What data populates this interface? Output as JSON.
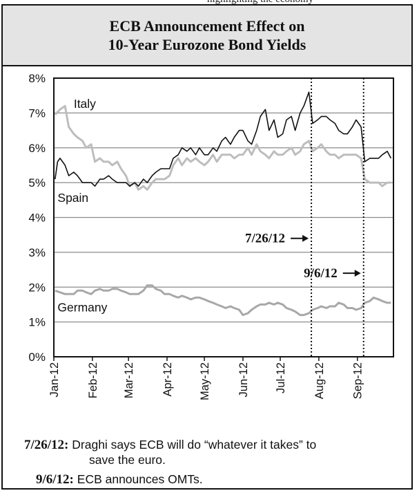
{
  "header_fragment": "highlighting the economy",
  "chart_data": {
    "type": "line",
    "title": "ECB Announcement Effect on",
    "subtitle": "10-Year Eurozone Bond Yields",
    "xlabel": "",
    "ylabel": "",
    "ylim": [
      0,
      8
    ],
    "y_ticks": [
      "0%",
      "1%",
      "2%",
      "3%",
      "4%",
      "5%",
      "6%",
      "7%",
      "8%"
    ],
    "x_ticks": [
      "Jan-12",
      "Feb-12",
      "Mar-12",
      "Apr-12",
      "May-12",
      "Jun-12",
      "Jul-12",
      "Aug-12",
      "Sep-12"
    ],
    "xlim": [
      "2012-01-01",
      "2012-09-30"
    ],
    "grid": "horizontal",
    "legend": "none",
    "series": [
      {
        "name": "Italy",
        "color": "#bdbdbd",
        "points": [
          [
            "2012-01-02",
            6.95
          ],
          [
            "2012-01-06",
            7.1
          ],
          [
            "2012-01-10",
            7.2
          ],
          [
            "2012-01-13",
            6.6
          ],
          [
            "2012-01-17",
            6.4
          ],
          [
            "2012-01-20",
            6.3
          ],
          [
            "2012-01-24",
            6.2
          ],
          [
            "2012-01-27",
            6.0
          ],
          [
            "2012-01-31",
            6.1
          ],
          [
            "2012-02-03",
            5.6
          ],
          [
            "2012-02-07",
            5.7
          ],
          [
            "2012-02-10",
            5.6
          ],
          [
            "2012-02-14",
            5.6
          ],
          [
            "2012-02-17",
            5.5
          ],
          [
            "2012-02-21",
            5.6
          ],
          [
            "2012-02-24",
            5.4
          ],
          [
            "2012-02-28",
            5.2
          ],
          [
            "2012-03-02",
            4.9
          ],
          [
            "2012-03-06",
            5.0
          ],
          [
            "2012-03-09",
            4.8
          ],
          [
            "2012-03-13",
            4.9
          ],
          [
            "2012-03-16",
            4.8
          ],
          [
            "2012-03-20",
            5.0
          ],
          [
            "2012-03-23",
            5.1
          ],
          [
            "2012-03-27",
            5.1
          ],
          [
            "2012-03-30",
            5.1
          ],
          [
            "2012-04-03",
            5.2
          ],
          [
            "2012-04-06",
            5.5
          ],
          [
            "2012-04-10",
            5.7
          ],
          [
            "2012-04-13",
            5.5
          ],
          [
            "2012-04-17",
            5.7
          ],
          [
            "2012-04-20",
            5.6
          ],
          [
            "2012-04-24",
            5.7
          ],
          [
            "2012-04-27",
            5.6
          ],
          [
            "2012-05-01",
            5.5
          ],
          [
            "2012-05-04",
            5.6
          ],
          [
            "2012-05-08",
            5.8
          ],
          [
            "2012-05-11",
            5.6
          ],
          [
            "2012-05-15",
            5.8
          ],
          [
            "2012-05-18",
            5.8
          ],
          [
            "2012-05-22",
            5.8
          ],
          [
            "2012-05-25",
            5.7
          ],
          [
            "2012-05-29",
            5.8
          ],
          [
            "2012-06-01",
            5.8
          ],
          [
            "2012-06-05",
            6.0
          ],
          [
            "2012-06-08",
            5.8
          ],
          [
            "2012-06-12",
            6.1
          ],
          [
            "2012-06-15",
            5.9
          ],
          [
            "2012-06-19",
            5.8
          ],
          [
            "2012-06-22",
            5.7
          ],
          [
            "2012-06-26",
            5.9
          ],
          [
            "2012-06-29",
            5.8
          ],
          [
            "2012-07-03",
            5.8
          ],
          [
            "2012-07-06",
            5.9
          ],
          [
            "2012-07-10",
            6.0
          ],
          [
            "2012-07-13",
            5.8
          ],
          [
            "2012-07-17",
            5.9
          ],
          [
            "2012-07-20",
            6.1
          ],
          [
            "2012-07-24",
            6.2
          ],
          [
            "2012-07-27",
            5.9
          ],
          [
            "2012-07-31",
            6.0
          ],
          [
            "2012-08-03",
            6.1
          ],
          [
            "2012-08-07",
            5.9
          ],
          [
            "2012-08-10",
            5.8
          ],
          [
            "2012-08-14",
            5.8
          ],
          [
            "2012-08-17",
            5.7
          ],
          [
            "2012-08-21",
            5.8
          ],
          [
            "2012-08-24",
            5.8
          ],
          [
            "2012-08-28",
            5.8
          ],
          [
            "2012-08-31",
            5.8
          ],
          [
            "2012-09-04",
            5.7
          ],
          [
            "2012-09-07",
            5.1
          ],
          [
            "2012-09-11",
            5.0
          ],
          [
            "2012-09-14",
            5.0
          ],
          [
            "2012-09-18",
            5.0
          ],
          [
            "2012-09-21",
            4.9
          ],
          [
            "2012-09-25",
            5.0
          ],
          [
            "2012-09-28",
            5.0
          ]
        ]
      },
      {
        "name": "Spain",
        "color": "#111111",
        "points": [
          [
            "2012-01-02",
            5.1
          ],
          [
            "2012-01-04",
            5.6
          ],
          [
            "2012-01-06",
            5.7
          ],
          [
            "2012-01-10",
            5.5
          ],
          [
            "2012-01-13",
            5.2
          ],
          [
            "2012-01-17",
            5.3
          ],
          [
            "2012-01-20",
            5.2
          ],
          [
            "2012-01-24",
            5.0
          ],
          [
            "2012-01-27",
            5.0
          ],
          [
            "2012-01-31",
            5.0
          ],
          [
            "2012-02-03",
            4.9
          ],
          [
            "2012-02-07",
            5.1
          ],
          [
            "2012-02-10",
            5.1
          ],
          [
            "2012-02-14",
            5.2
          ],
          [
            "2012-02-17",
            5.1
          ],
          [
            "2012-02-21",
            5.0
          ],
          [
            "2012-02-24",
            5.0
          ],
          [
            "2012-02-28",
            5.0
          ],
          [
            "2012-03-02",
            4.9
          ],
          [
            "2012-03-06",
            5.0
          ],
          [
            "2012-03-09",
            4.9
          ],
          [
            "2012-03-13",
            5.1
          ],
          [
            "2012-03-16",
            5.0
          ],
          [
            "2012-03-20",
            5.2
          ],
          [
            "2012-03-23",
            5.3
          ],
          [
            "2012-03-27",
            5.4
          ],
          [
            "2012-03-30",
            5.4
          ],
          [
            "2012-04-03",
            5.4
          ],
          [
            "2012-04-06",
            5.7
          ],
          [
            "2012-04-10",
            5.8
          ],
          [
            "2012-04-13",
            6.0
          ],
          [
            "2012-04-17",
            5.9
          ],
          [
            "2012-04-20",
            6.0
          ],
          [
            "2012-04-24",
            5.8
          ],
          [
            "2012-04-27",
            6.0
          ],
          [
            "2012-05-01",
            5.8
          ],
          [
            "2012-05-04",
            5.8
          ],
          [
            "2012-05-08",
            6.0
          ],
          [
            "2012-05-11",
            5.9
          ],
          [
            "2012-05-15",
            6.2
          ],
          [
            "2012-05-18",
            6.3
          ],
          [
            "2012-05-22",
            6.1
          ],
          [
            "2012-05-25",
            6.3
          ],
          [
            "2012-05-29",
            6.5
          ],
          [
            "2012-06-01",
            6.5
          ],
          [
            "2012-06-05",
            6.2
          ],
          [
            "2012-06-08",
            6.1
          ],
          [
            "2012-06-12",
            6.5
          ],
          [
            "2012-06-15",
            6.9
          ],
          [
            "2012-06-19",
            7.1
          ],
          [
            "2012-06-22",
            6.5
          ],
          [
            "2012-06-26",
            6.8
          ],
          [
            "2012-06-29",
            6.3
          ],
          [
            "2012-07-03",
            6.4
          ],
          [
            "2012-07-06",
            6.8
          ],
          [
            "2012-07-10",
            6.9
          ],
          [
            "2012-07-13",
            6.5
          ],
          [
            "2012-07-17",
            7.0
          ],
          [
            "2012-07-20",
            7.2
          ],
          [
            "2012-07-24",
            7.6
          ],
          [
            "2012-07-27",
            6.7
          ],
          [
            "2012-07-31",
            6.8
          ],
          [
            "2012-08-03",
            6.9
          ],
          [
            "2012-08-07",
            6.9
          ],
          [
            "2012-08-10",
            6.8
          ],
          [
            "2012-08-14",
            6.7
          ],
          [
            "2012-08-17",
            6.5
          ],
          [
            "2012-08-21",
            6.4
          ],
          [
            "2012-08-24",
            6.4
          ],
          [
            "2012-08-28",
            6.6
          ],
          [
            "2012-08-31",
            6.8
          ],
          [
            "2012-09-04",
            6.6
          ],
          [
            "2012-09-07",
            5.6
          ],
          [
            "2012-09-11",
            5.7
          ],
          [
            "2012-09-14",
            5.7
          ],
          [
            "2012-09-18",
            5.7
          ],
          [
            "2012-09-21",
            5.8
          ],
          [
            "2012-09-25",
            5.9
          ],
          [
            "2012-09-28",
            5.7
          ]
        ]
      },
      {
        "name": "Germany",
        "color": "#a8a8a8",
        "points": [
          [
            "2012-01-02",
            1.9
          ],
          [
            "2012-01-06",
            1.85
          ],
          [
            "2012-01-10",
            1.8
          ],
          [
            "2012-01-13",
            1.8
          ],
          [
            "2012-01-17",
            1.8
          ],
          [
            "2012-01-20",
            1.9
          ],
          [
            "2012-01-24",
            1.9
          ],
          [
            "2012-01-27",
            1.85
          ],
          [
            "2012-01-31",
            1.8
          ],
          [
            "2012-02-03",
            1.9
          ],
          [
            "2012-02-07",
            1.95
          ],
          [
            "2012-02-10",
            1.9
          ],
          [
            "2012-02-14",
            1.9
          ],
          [
            "2012-02-17",
            1.95
          ],
          [
            "2012-02-21",
            1.95
          ],
          [
            "2012-02-24",
            1.9
          ],
          [
            "2012-02-28",
            1.85
          ],
          [
            "2012-03-02",
            1.8
          ],
          [
            "2012-03-06",
            1.8
          ],
          [
            "2012-03-09",
            1.8
          ],
          [
            "2012-03-13",
            1.9
          ],
          [
            "2012-03-16",
            2.05
          ],
          [
            "2012-03-20",
            2.05
          ],
          [
            "2012-03-23",
            1.95
          ],
          [
            "2012-03-27",
            1.9
          ],
          [
            "2012-03-30",
            1.8
          ],
          [
            "2012-04-03",
            1.8
          ],
          [
            "2012-04-06",
            1.75
          ],
          [
            "2012-04-10",
            1.7
          ],
          [
            "2012-04-13",
            1.75
          ],
          [
            "2012-04-17",
            1.7
          ],
          [
            "2012-04-20",
            1.65
          ],
          [
            "2012-04-24",
            1.7
          ],
          [
            "2012-04-27",
            1.7
          ],
          [
            "2012-05-01",
            1.65
          ],
          [
            "2012-05-04",
            1.6
          ],
          [
            "2012-05-08",
            1.55
          ],
          [
            "2012-05-11",
            1.5
          ],
          [
            "2012-05-15",
            1.45
          ],
          [
            "2012-05-18",
            1.4
          ],
          [
            "2012-05-22",
            1.45
          ],
          [
            "2012-05-25",
            1.4
          ],
          [
            "2012-05-29",
            1.35
          ],
          [
            "2012-06-01",
            1.2
          ],
          [
            "2012-06-05",
            1.25
          ],
          [
            "2012-06-08",
            1.35
          ],
          [
            "2012-06-12",
            1.45
          ],
          [
            "2012-06-15",
            1.5
          ],
          [
            "2012-06-19",
            1.5
          ],
          [
            "2012-06-22",
            1.55
          ],
          [
            "2012-06-26",
            1.5
          ],
          [
            "2012-06-29",
            1.55
          ],
          [
            "2012-07-03",
            1.5
          ],
          [
            "2012-07-06",
            1.4
          ],
          [
            "2012-07-10",
            1.35
          ],
          [
            "2012-07-13",
            1.3
          ],
          [
            "2012-07-17",
            1.2
          ],
          [
            "2012-07-20",
            1.2
          ],
          [
            "2012-07-24",
            1.25
          ],
          [
            "2012-07-27",
            1.35
          ],
          [
            "2012-07-31",
            1.4
          ],
          [
            "2012-08-03",
            1.45
          ],
          [
            "2012-08-07",
            1.4
          ],
          [
            "2012-08-10",
            1.45
          ],
          [
            "2012-08-14",
            1.45
          ],
          [
            "2012-08-17",
            1.55
          ],
          [
            "2012-08-21",
            1.5
          ],
          [
            "2012-08-24",
            1.4
          ],
          [
            "2012-08-28",
            1.4
          ],
          [
            "2012-08-31",
            1.35
          ],
          [
            "2012-09-04",
            1.4
          ],
          [
            "2012-09-07",
            1.55
          ],
          [
            "2012-09-11",
            1.6
          ],
          [
            "2012-09-14",
            1.7
          ],
          [
            "2012-09-18",
            1.65
          ],
          [
            "2012-09-21",
            1.6
          ],
          [
            "2012-09-25",
            1.55
          ],
          [
            "2012-09-28",
            1.55
          ]
        ]
      }
    ],
    "event_lines": [
      {
        "date": "2012-07-26",
        "label": "7/26/12"
      },
      {
        "date": "2012-09-06",
        "label": "9/6/12"
      }
    ]
  },
  "notes": [
    {
      "date": "7/26/12:",
      "line1": "Draghi says ECB will do “whatever it takes” to",
      "line2": "save the euro."
    },
    {
      "date": "9/6/12:",
      "line1": "ECB announces OMTs.",
      "line2": ""
    }
  ],
  "colors": {
    "title_band": "#e4e4e4",
    "gridline": "#8c8c8c",
    "frame": "#111111"
  }
}
